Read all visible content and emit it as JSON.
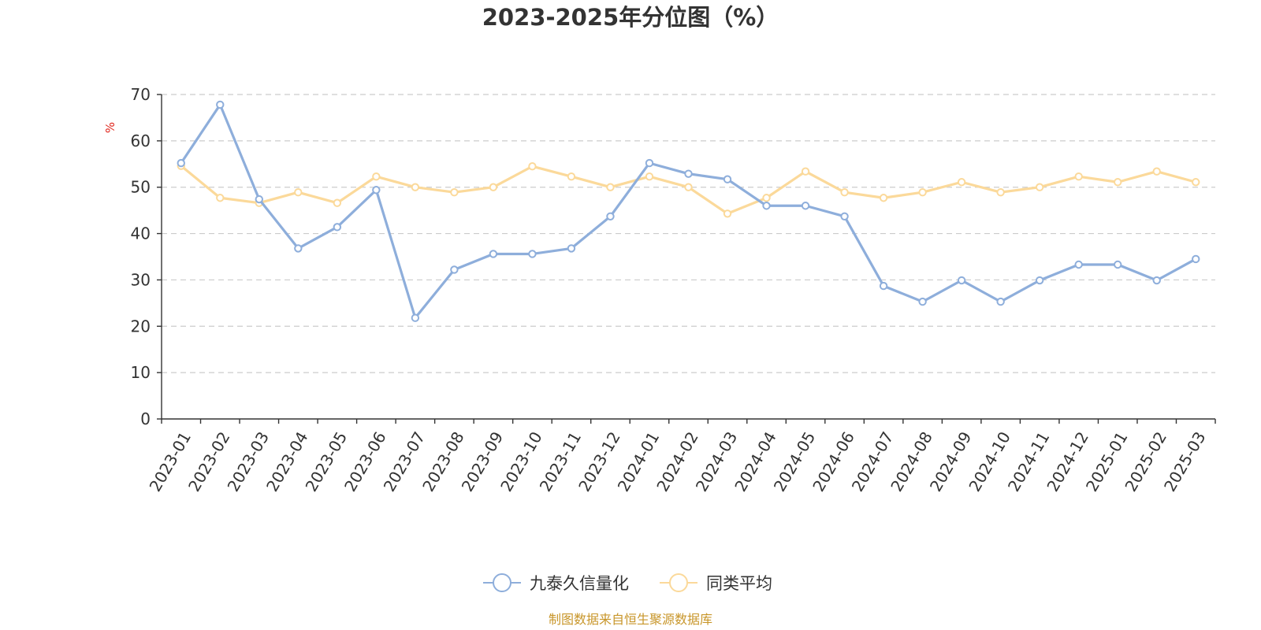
{
  "chart_data": {
    "type": "line",
    "title": "2023-2025年分位图（%）",
    "ylabel": "%",
    "xlabel": "",
    "ylim": [
      0,
      70
    ],
    "yticks": [
      0,
      10,
      20,
      30,
      40,
      50,
      60,
      70
    ],
    "grid": true,
    "legend_position": "bottom",
    "categories": [
      "2023-01",
      "2023-02",
      "2023-03",
      "2023-04",
      "2023-05",
      "2023-06",
      "2023-07",
      "2023-08",
      "2023-09",
      "2023-10",
      "2023-11",
      "2023-12",
      "2024-01",
      "2024-02",
      "2024-03",
      "2024-04",
      "2024-05",
      "2024-06",
      "2024-07",
      "2024-08",
      "2024-09",
      "2024-10",
      "2024-11",
      "2024-12",
      "2025-01",
      "2025-02",
      "2025-03"
    ],
    "series": [
      {
        "name": "九泰久信量化",
        "color": "#8eaedb",
        "values": [
          55.2,
          67.8,
          47.4,
          36.8,
          41.4,
          49.4,
          21.8,
          32.2,
          35.6,
          35.6,
          36.8,
          43.7,
          55.2,
          52.9,
          51.7,
          46.0,
          46.0,
          43.7,
          28.7,
          25.3,
          29.9,
          25.3,
          29.9,
          33.3,
          33.3,
          29.9,
          34.5
        ]
      },
      {
        "name": "同类平均",
        "color": "#fbd99a",
        "values": [
          54.6,
          47.7,
          46.6,
          48.9,
          46.6,
          52.3,
          50.0,
          48.9,
          50.0,
          54.5,
          52.3,
          50.0,
          52.3,
          50.0,
          44.3,
          47.7,
          53.4,
          48.9,
          47.7,
          48.9,
          51.1,
          48.9,
          50.0,
          52.3,
          51.1,
          53.4,
          51.1
        ]
      }
    ]
  },
  "footer": {
    "source": "制图数据来自恒生聚源数据库"
  }
}
